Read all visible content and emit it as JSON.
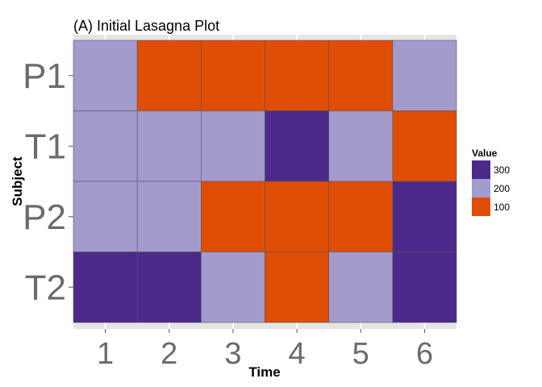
{
  "chart_data": {
    "type": "heatmap",
    "title": "(A)  Initial Lasagna Plot",
    "xlabel": "Time",
    "ylabel": "Subject",
    "x_categories": [
      "1",
      "2",
      "3",
      "4",
      "5",
      "6"
    ],
    "y_categories": [
      "P1",
      "T1",
      "P2",
      "T2"
    ],
    "values": [
      [
        200,
        100,
        100,
        100,
        100,
        200
      ],
      [
        200,
        200,
        200,
        300,
        200,
        100
      ],
      [
        200,
        200,
        100,
        100,
        100,
        300
      ],
      [
        300,
        300,
        200,
        100,
        200,
        300
      ]
    ],
    "legend": {
      "title": "Value",
      "position": "right",
      "entries": [
        {
          "label": "300",
          "value": 300,
          "color": "#4b2a8b"
        },
        {
          "label": "200",
          "value": 200,
          "color": "#a39bcc"
        },
        {
          "label": "100",
          "value": 100,
          "color": "#e04e05"
        }
      ]
    },
    "grid": true
  }
}
